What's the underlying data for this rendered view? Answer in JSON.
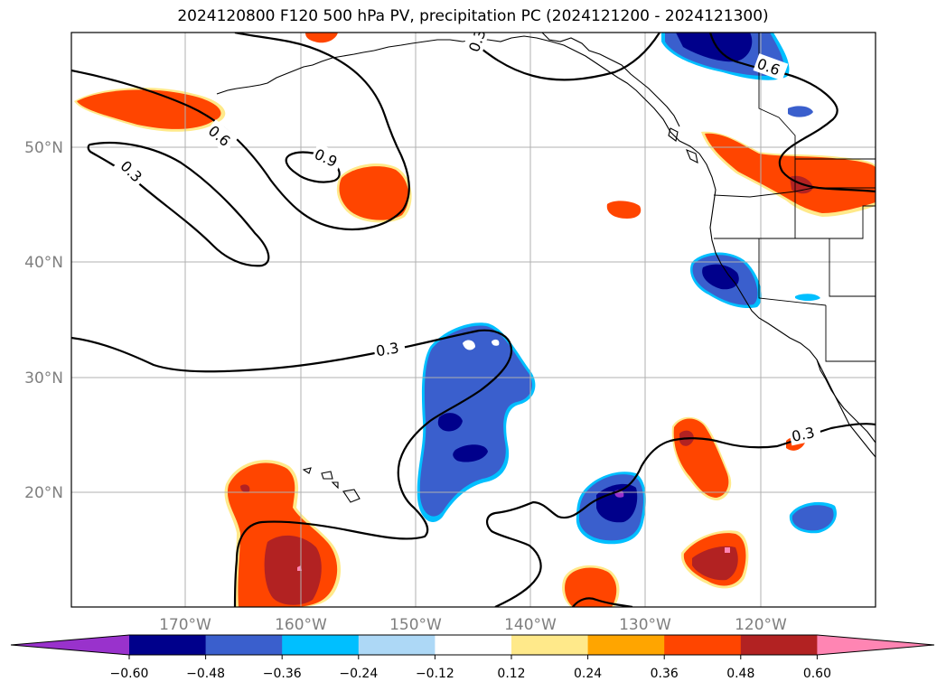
{
  "title": "2024120800 F120 500 hPa PV, precipitation PC (2024121200 - 2024121300)",
  "map": {
    "lon_labels": [
      "170°W",
      "160°W",
      "150°W",
      "140°W",
      "130°W",
      "120°W"
    ],
    "lat_labels": [
      "50°N",
      "40°N",
      "30°N",
      "20°N"
    ],
    "extent": {
      "lon_min": -180,
      "lon_max": -110,
      "lat_min": 10,
      "lat_max": 60
    },
    "contour_labels": [
      "0.3",
      "0.6",
      "0.9",
      "0.3",
      "0.3",
      "0.6",
      "0.3"
    ]
  },
  "colorbar": {
    "ticks": [
      "−0.60",
      "−0.48",
      "−0.36",
      "−0.24",
      "−0.12",
      "0.12",
      "0.24",
      "0.36",
      "0.48",
      "0.60"
    ],
    "colors": [
      "#9932cc",
      "#00008b",
      "#3a5fcd",
      "#00bfff",
      "#add8f6",
      "#ffffff",
      "#ffe98a",
      "#ffa500",
      "#ff4500",
      "#b22222",
      "#ff85b3"
    ]
  },
  "colors": {
    "neg_strong": "#00008b",
    "neg_mid": "#3a5fcd",
    "neg_light": "#00bfff",
    "pos_mid": "#ff4500",
    "pos_strong": "#b22222",
    "pos_max": "#ff85b3",
    "pos_light": "#ffe98a",
    "grid": "#b0b0b0"
  }
}
